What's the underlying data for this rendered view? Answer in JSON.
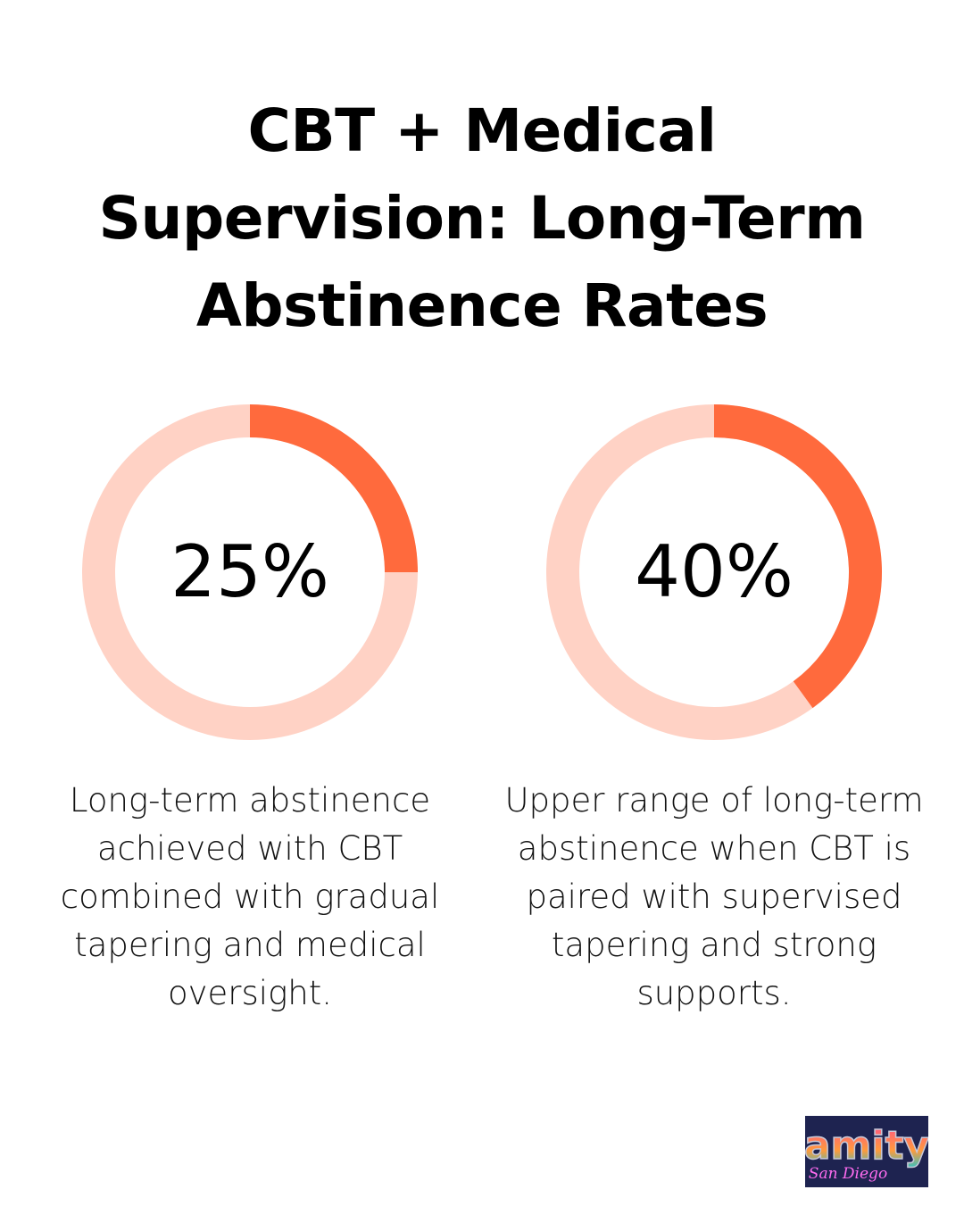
{
  "title": "CBT + Medical Supervision: Long-Term Abstinence Rates",
  "colors": {
    "accent": "#ff6a3d",
    "track": "#ffd2c5"
  },
  "chart_data": [
    {
      "type": "pie",
      "variant": "donut",
      "value": 25,
      "max": 100,
      "label": "25%",
      "description": "Long-term abstinence achieved with CBT combined with gradual tapering and medical oversight."
    },
    {
      "type": "pie",
      "variant": "donut",
      "value": 40,
      "max": 100,
      "label": "40%",
      "description": "Upper range of long-term abstinence when CBT is paired with supervised tapering and strong supports."
    }
  ],
  "logo": {
    "text": "amity San Diego"
  }
}
